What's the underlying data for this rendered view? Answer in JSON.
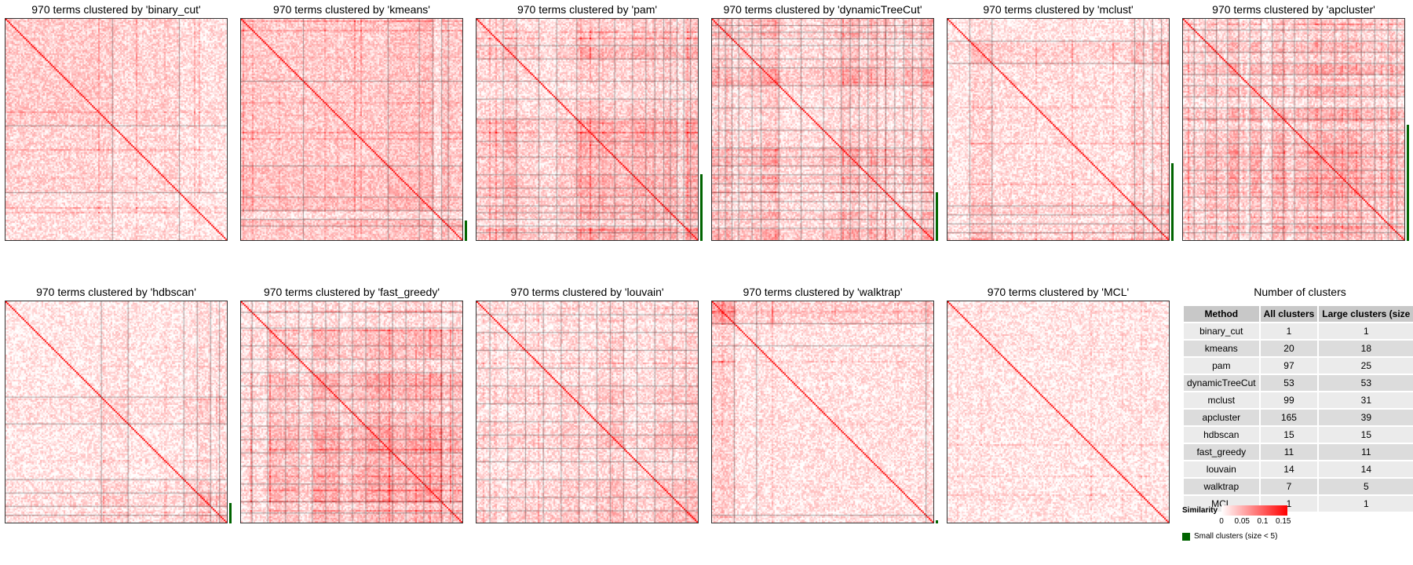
{
  "panels": [
    {
      "title": "970 terms clustered by 'binary_cut'",
      "method": "binary_cut",
      "boundaries": [
        0.48,
        0.78
      ],
      "small_bar": null
    },
    {
      "title": "970 terms clustered by 'kmeans'",
      "method": "kmeans",
      "boundaries": [
        0.28,
        0.66,
        0.8,
        0.86,
        0.9,
        0.93
      ],
      "small_bar": [
        0.91,
        1.0
      ]
    },
    {
      "title": "970 terms clustered by 'pam'",
      "method": "pam",
      "boundaries": [
        0.12,
        0.18,
        0.28,
        0.36,
        0.45,
        0.55,
        0.62,
        0.7,
        0.76,
        0.8,
        0.84,
        0.87,
        0.9,
        0.93,
        0.96
      ],
      "small_bar": [
        0.7,
        1.0
      ]
    },
    {
      "title": "970 terms clustered by 'dynamicTreeCut'",
      "method": "dynamicTreeCut",
      "boundaries": [
        0.03,
        0.06,
        0.09,
        0.12,
        0.18,
        0.22,
        0.3,
        0.4,
        0.5,
        0.58,
        0.62,
        0.66,
        0.7,
        0.74,
        0.78,
        0.82,
        0.86,
        0.9,
        0.94
      ],
      "small_bar": [
        0.78,
        1.0
      ]
    },
    {
      "title": "970 terms clustered by 'mclust'",
      "method": "mclust",
      "boundaries": [
        0.1,
        0.2,
        0.84,
        0.88,
        0.92,
        0.96
      ],
      "small_bar": [
        0.65,
        1.0
      ]
    },
    {
      "title": "970 terms clustered by 'apcluster'",
      "method": "apcluster",
      "boundaries": [
        0.05,
        0.1,
        0.15,
        0.2,
        0.25,
        0.3,
        0.35,
        0.4,
        0.45,
        0.5,
        0.56,
        0.62,
        0.68,
        0.74,
        0.8,
        0.86,
        0.92,
        0.96
      ],
      "small_bar": [
        0.48,
        1.0
      ]
    },
    {
      "title": "970 terms clustered by 'hdbscan'",
      "method": "hdbscan",
      "boundaries": [
        0.43,
        0.55,
        0.8,
        0.86,
        0.92,
        0.96
      ],
      "small_bar": [
        0.91,
        1.0
      ]
    },
    {
      "title": "970 terms clustered by 'fast_greedy'",
      "method": "fast_greedy",
      "boundaries": [
        0.05,
        0.12,
        0.2,
        0.26,
        0.32,
        0.38,
        0.44,
        0.5,
        0.56,
        0.62,
        0.68,
        0.74,
        0.82,
        0.9,
        0.95
      ],
      "small_bar": null
    },
    {
      "title": "970 terms clustered by 'louvain'",
      "method": "louvain",
      "boundaries": [
        0.06,
        0.14,
        0.22,
        0.3,
        0.38,
        0.46,
        0.54,
        0.6,
        0.66,
        0.72,
        0.8,
        0.88,
        0.94
      ],
      "small_bar": null
    },
    {
      "title": "970 terms clustered by 'walktrap'",
      "method": "walktrap",
      "boundaries": [
        0.1,
        0.2,
        0.96
      ],
      "small_bar": [
        0.985,
        1.0
      ]
    },
    {
      "title": "970 terms clustered by 'MCL'",
      "method": "MCL",
      "boundaries": [],
      "small_bar": null
    }
  ],
  "table": {
    "title": "Number of clusters",
    "headers": [
      "Method",
      "All clusters",
      "Large clusters (size"
    ],
    "rows": [
      [
        "binary_cut",
        "1",
        "1"
      ],
      [
        "kmeans",
        "20",
        "18"
      ],
      [
        "pam",
        "97",
        "25"
      ],
      [
        "dynamicTreeCut",
        "53",
        "53"
      ],
      [
        "mclust",
        "99",
        "31"
      ],
      [
        "apcluster",
        "165",
        "39"
      ],
      [
        "hdbscan",
        "15",
        "15"
      ],
      [
        "fast_greedy",
        "11",
        "11"
      ],
      [
        "louvain",
        "14",
        "14"
      ],
      [
        "walktrap",
        "7",
        "5"
      ],
      [
        "MCL",
        "1",
        "1"
      ]
    ]
  },
  "legend": {
    "title": "Similarity",
    "ticks": [
      "0",
      "0.05",
      "0.1",
      "0.15"
    ],
    "tick_values": [
      0,
      0.05,
      0.1,
      0.15
    ],
    "range": [
      0,
      0.16
    ],
    "color_low": "#ffffff",
    "color_high": "#ff0000",
    "small_cluster_label": "Small clusters (size < 5)",
    "small_cluster_color": "#006400"
  },
  "chart_data": {
    "type": "heatmap",
    "n_terms": 970,
    "value_label": "Similarity",
    "value_range": [
      0,
      0.16
    ],
    "methods": [
      "binary_cut",
      "kmeans",
      "pam",
      "dynamicTreeCut",
      "mclust",
      "apcluster",
      "hdbscan",
      "fast_greedy",
      "louvain",
      "walktrap",
      "MCL"
    ],
    "all_clusters": [
      1,
      20,
      97,
      53,
      99,
      165,
      15,
      11,
      14,
      7,
      1
    ],
    "large_clusters": [
      1,
      18,
      25,
      53,
      31,
      39,
      15,
      11,
      14,
      5,
      1
    ]
  }
}
